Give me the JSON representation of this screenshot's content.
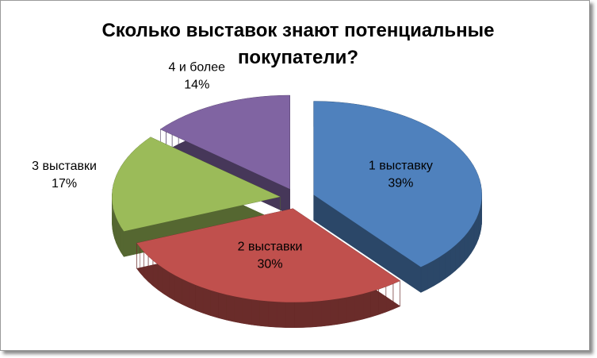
{
  "chart_data": {
    "type": "pie3d",
    "title": "Сколько выставок знают потенциальные покупатели?",
    "categories": [
      "1 выставку",
      "2 выставки",
      "3 выставки",
      "4 и более"
    ],
    "values": [
      39,
      30,
      17,
      14
    ],
    "value_labels": [
      "39%",
      "30%",
      "17%",
      "14%"
    ],
    "colors": [
      "#4f81bd",
      "#c0504d",
      "#9bbb59",
      "#8064a2"
    ]
  }
}
